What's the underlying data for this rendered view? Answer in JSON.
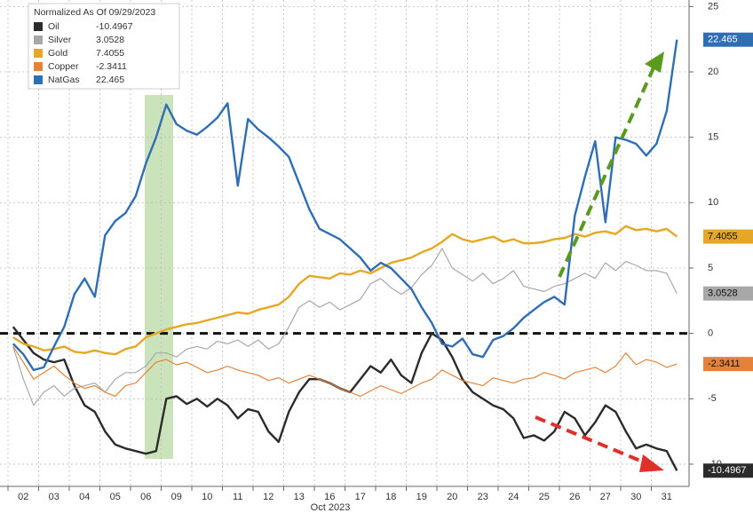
{
  "chart_data": {
    "type": "line",
    "legend_title": "Normalized As Of 09/29/2023",
    "xlabel": "Oct 2023",
    "categories": [
      null,
      "02",
      null,
      null,
      "03",
      null,
      null,
      "04",
      null,
      null,
      "05",
      null,
      null,
      "06",
      null,
      null,
      "09",
      null,
      null,
      "10",
      null,
      null,
      "11",
      null,
      null,
      "12",
      null,
      null,
      "13",
      null,
      null,
      "16",
      null,
      null,
      "17",
      null,
      null,
      "18",
      null,
      null,
      "19",
      null,
      null,
      "20",
      null,
      null,
      "23",
      null,
      null,
      "24",
      null,
      null,
      "25",
      null,
      null,
      "26",
      null,
      null,
      "27",
      null,
      null,
      "30",
      null,
      null,
      "31",
      null
    ],
    "ylim": [
      -11.7,
      25.5
    ],
    "yticks": [
      -10,
      -5,
      0,
      5,
      10,
      15,
      20,
      25
    ],
    "grid": true,
    "legend": "upper left",
    "series": [
      {
        "name": "Oil",
        "color": "#2b2b2b",
        "values": [
          0.5,
          -0.5,
          -1.5,
          -2.0,
          -2.2,
          -2.0,
          -4.0,
          -5.5,
          -6.0,
          -7.5,
          -8.5,
          -8.8,
          -9.0,
          -9.2,
          -9.0,
          -5.0,
          -4.8,
          -5.4,
          -5.0,
          -5.6,
          -5.0,
          -5.5,
          -6.5,
          -5.8,
          -6.0,
          -7.5,
          -8.3,
          -6.0,
          -4.5,
          -3.5,
          -3.5,
          -3.8,
          -4.2,
          -4.5,
          -3.5,
          -2.5,
          -3.0,
          -2.0,
          -3.2,
          -3.8,
          -1.5,
          0.0,
          -0.5,
          -1.8,
          -3.5,
          -4.5,
          -5.0,
          -5.5,
          -5.8,
          -6.5,
          -8.0,
          -7.8,
          -8.2,
          -7.5,
          -6.0,
          -6.5,
          -7.8,
          -6.8,
          -5.5,
          -6.0,
          -7.5,
          -8.8,
          -8.5,
          -8.8,
          -9.0,
          -10.4967
        ]
      },
      {
        "name": "Silver",
        "color": "#a8a8a8",
        "values": [
          -1.0,
          -3.5,
          -5.5,
          -4.5,
          -4.0,
          -4.8,
          -4.2,
          -4.0,
          -3.8,
          -4.5,
          -3.5,
          -3.0,
          -3.0,
          -2.5,
          -1.5,
          -1.5,
          -1.8,
          -1.2,
          -1.0,
          -1.2,
          -0.6,
          -0.8,
          -0.5,
          -1.0,
          -0.5,
          -1.2,
          -0.8,
          0.5,
          2.0,
          2.5,
          2.0,
          2.4,
          1.8,
          2.2,
          2.6,
          3.8,
          4.2,
          3.5,
          3.0,
          3.5,
          4.5,
          5.2,
          6.5,
          5.0,
          4.5,
          4.0,
          4.6,
          3.8,
          4.2,
          4.8,
          3.6,
          3.4,
          3.2,
          3.6,
          3.8,
          4.2,
          4.6,
          4.2,
          5.4,
          4.8,
          5.5,
          5.2,
          4.8,
          4.8,
          4.6,
          3.0528
        ]
      },
      {
        "name": "Gold",
        "color": "#e5a826",
        "values": [
          -0.3,
          -0.8,
          -1.0,
          -1.3,
          -1.2,
          -1.0,
          -1.4,
          -1.5,
          -1.3,
          -1.5,
          -1.6,
          -1.2,
          -1.0,
          -0.3,
          0.0,
          0.3,
          0.5,
          0.7,
          0.8,
          1.0,
          1.2,
          1.4,
          1.6,
          1.5,
          1.8,
          2.0,
          2.2,
          2.8,
          3.8,
          4.4,
          4.3,
          4.2,
          4.6,
          4.5,
          4.8,
          4.6,
          5.0,
          5.4,
          5.6,
          5.8,
          6.2,
          6.5,
          7.0,
          7.6,
          7.2,
          7.0,
          7.2,
          7.4,
          7.0,
          7.2,
          6.9,
          6.9,
          7.0,
          7.2,
          7.3,
          7.6,
          7.4,
          7.7,
          7.8,
          7.6,
          8.2,
          7.9,
          8.0,
          7.8,
          8.0,
          7.4055
        ]
      },
      {
        "name": "Copper",
        "color": "#e3833a",
        "values": [
          -1.0,
          -2.2,
          -3.5,
          -3.0,
          -2.5,
          -3.2,
          -3.8,
          -4.2,
          -4.0,
          -4.5,
          -4.8,
          -4.0,
          -3.8,
          -3.0,
          -2.2,
          -2.0,
          -2.4,
          -2.2,
          -2.6,
          -3.0,
          -2.8,
          -2.5,
          -2.8,
          -3.0,
          -3.2,
          -3.6,
          -3.4,
          -3.8,
          -3.5,
          -3.2,
          -3.5,
          -3.8,
          -4.2,
          -4.5,
          -4.8,
          -4.4,
          -4.0,
          -4.3,
          -4.6,
          -4.2,
          -3.8,
          -3.5,
          -2.8,
          -3.2,
          -3.6,
          -3.8,
          -4.0,
          -3.4,
          -3.6,
          -3.8,
          -3.5,
          -3.4,
          -3.0,
          -3.2,
          -3.5,
          -3.0,
          -2.8,
          -2.6,
          -3.0,
          -2.5,
          -1.5,
          -2.4,
          -2.0,
          -2.2,
          -2.6,
          -2.3411
        ]
      },
      {
        "name": "NatGas",
        "color": "#2f6db5",
        "values": [
          -0.8,
          -1.6,
          -2.8,
          -2.6,
          -1.0,
          0.5,
          3.0,
          4.2,
          2.8,
          7.5,
          8.6,
          9.2,
          10.5,
          13.0,
          15.0,
          17.5,
          16.0,
          15.5,
          15.2,
          15.8,
          16.5,
          17.6,
          11.3,
          16.4,
          15.6,
          15.0,
          14.3,
          13.5,
          11.5,
          9.5,
          8.0,
          7.6,
          7.2,
          6.5,
          5.8,
          4.8,
          5.4,
          5.0,
          4.2,
          3.4,
          2.0,
          0.8,
          -0.8,
          -1.0,
          -0.4,
          -1.6,
          -1.8,
          -0.5,
          -0.2,
          0.4,
          1.2,
          1.8,
          2.4,
          2.8,
          2.2,
          9.0,
          12.0,
          14.7,
          8.5,
          15.0,
          14.8,
          14.5,
          13.6,
          14.5,
          17.0,
          22.465
        ]
      }
    ]
  }
}
